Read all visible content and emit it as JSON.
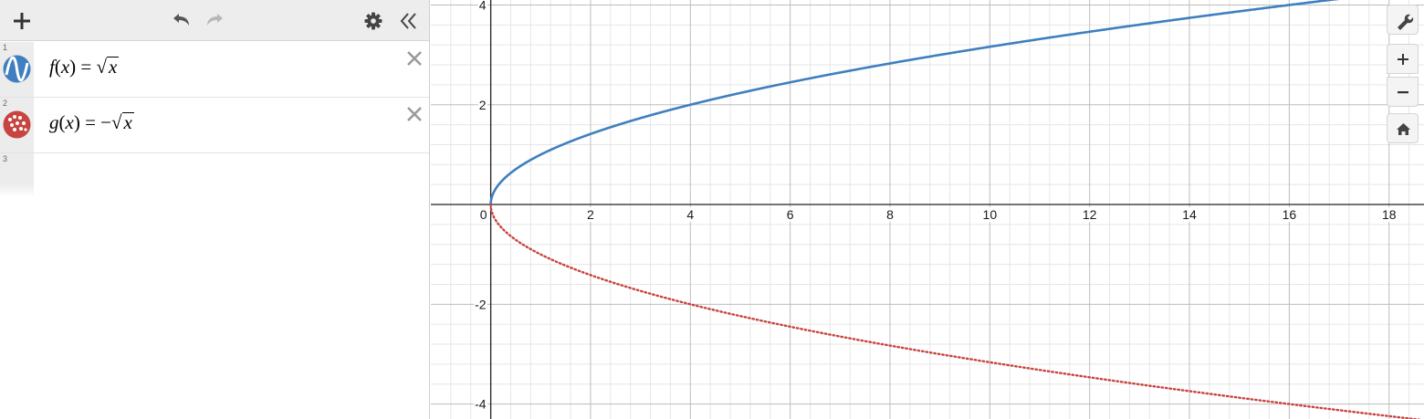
{
  "colors": {
    "curve_f": "#3f7fbf",
    "curve_g": "#c74440",
    "toolbar_bg": "#ededed",
    "grid_major": "#bdbdbd",
    "grid_minor": "#e6e6e6"
  },
  "toolbar": {
    "add_icon": "plus-icon",
    "undo_icon": "undo-icon",
    "redo_icon": "redo-icon",
    "settings_icon": "gear-icon",
    "collapse_icon": "double-chevron-left-icon"
  },
  "expressions": [
    {
      "index": "1",
      "fn": "f",
      "var": "x",
      "neg": "",
      "icon": "wave-icon",
      "color": "#3f7fbf"
    },
    {
      "index": "2",
      "fn": "g",
      "var": "x",
      "neg": "−",
      "icon": "dotted-circle-icon",
      "color": "#c74440"
    },
    {
      "index": "3"
    }
  ],
  "chart_data": {
    "type": "line",
    "series": [
      {
        "name": "f(x) = √x",
        "style": "solid",
        "color": "#3f7fbf"
      },
      {
        "name": "g(x) = −√x",
        "style": "dotted",
        "color": "#c74440"
      }
    ],
    "xlim": [
      -1.2,
      18.7
    ],
    "ylim": [
      -4.3,
      4.1
    ],
    "x_ticks": [
      "0",
      "2",
      "4",
      "6",
      "8",
      "10",
      "12",
      "14",
      "16",
      "18"
    ],
    "y_ticks": [
      "4",
      "2",
      "-2",
      "-4"
    ],
    "grid": true
  },
  "controls": {
    "wrench_icon": "wrench-icon",
    "zoom_in_icon": "plus-icon",
    "zoom_out_icon": "minus-icon",
    "home_icon": "home-icon"
  }
}
